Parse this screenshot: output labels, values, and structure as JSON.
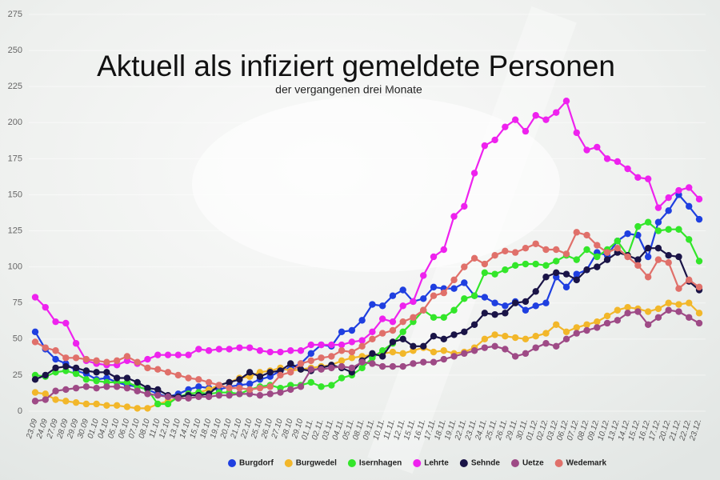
{
  "chart_data": {
    "type": "line",
    "title": "Aktuell als infiziert gemeldete Personen",
    "subtitle": "der vergangenen drei Monate",
    "categories": [
      "23.09",
      "24.09",
      "27.09",
      "28.09",
      "29.09",
      "30.09",
      "01.10",
      "04.10",
      "05.10",
      "06.10",
      "07.10",
      "08.10",
      "11.10",
      "12.10",
      "13.10",
      "14.10",
      "15.10",
      "18.10",
      "19.10",
      "20.10",
      "21.10",
      "22.10",
      "25.10",
      "26.10",
      "27.10",
      "28.10",
      "29.10",
      "01.11.",
      "02.11.",
      "03.11.",
      "04.11.",
      "05.11.",
      "08.11.",
      "09.11.",
      "10.11.",
      "11.11.",
      "12.11.",
      "15.11.",
      "16.11.",
      "17.11.",
      "18.11.",
      "19.11.",
      "22.11.",
      "23.11.",
      "24.11.",
      "25.11.",
      "26.11.",
      "29.11.",
      "30.11.",
      "01.12.",
      "02.12.",
      "03.12.",
      "06.12.",
      "07.12.",
      "08.12.",
      "09.12.",
      "10.12.",
      "13.12.",
      "14.12.",
      "15.12.",
      "16.12.",
      "17.12.",
      "20.12.",
      "21.12.",
      "22.12.",
      "23.12."
    ],
    "series": [
      {
        "name": "Burgdorf",
        "color": "#1f3fe0",
        "values": [
          55,
          43,
          36,
          33,
          28,
          26,
          22,
          23,
          20,
          18,
          17,
          15,
          12,
          10,
          12,
          15,
          17,
          16,
          15,
          17,
          18,
          19,
          22,
          24,
          28,
          30,
          33,
          40,
          46,
          45,
          55,
          56,
          63,
          74,
          73,
          80,
          84,
          76,
          78,
          86,
          85,
          85,
          89,
          80,
          79,
          75,
          73,
          76,
          70,
          73,
          75,
          93,
          86,
          95,
          98,
          110,
          108,
          118,
          123,
          122,
          107,
          131,
          139,
          150,
          142,
          133
        ]
      },
      {
        "name": "Burgwedel",
        "color": "#f2b72a",
        "values": [
          13,
          12,
          8,
          7,
          6,
          5,
          5,
          4,
          4,
          3,
          2,
          2,
          5,
          7,
          9,
          12,
          13,
          15,
          18,
          20,
          23,
          24,
          27,
          28,
          30,
          28,
          29,
          30,
          31,
          32,
          35,
          37,
          38,
          39,
          40,
          41,
          40,
          42,
          44,
          41,
          42,
          40,
          41,
          44,
          50,
          53,
          52,
          51,
          50,
          52,
          54,
          60,
          55,
          58,
          60,
          62,
          66,
          70,
          72,
          71,
          69,
          71,
          75,
          74,
          75,
          68
        ]
      },
      {
        "name": "Isernhagen",
        "color": "#33e62a",
        "values": [
          25,
          24,
          27,
          28,
          26,
          22,
          21,
          20,
          20,
          20,
          17,
          15,
          5,
          5,
          10,
          12,
          13,
          12,
          13,
          13,
          12,
          15,
          17,
          18,
          16,
          18,
          18,
          20,
          17,
          18,
          23,
          25,
          30,
          37,
          42,
          47,
          55,
          62,
          70,
          65,
          65,
          70,
          78,
          80,
          96,
          95,
          98,
          101,
          102,
          102,
          101,
          104,
          108,
          105,
          112,
          107,
          112,
          118,
          108,
          128,
          131,
          125,
          126,
          126,
          119,
          104
        ]
      },
      {
        "name": "Lehrte",
        "color": "#ee22ee",
        "values": [
          79,
          72,
          62,
          61,
          47,
          35,
          33,
          32,
          32,
          35,
          33,
          36,
          39,
          39,
          39,
          39,
          43,
          42,
          43,
          43,
          44,
          44,
          42,
          41,
          41,
          42,
          42,
          46,
          46,
          46,
          46,
          48,
          49,
          55,
          64,
          62,
          73,
          76,
          94,
          107,
          112,
          135,
          142,
          165,
          184,
          188,
          197,
          202,
          194,
          205,
          202,
          207,
          215,
          193,
          181,
          183,
          175,
          173,
          168,
          162,
          161,
          141,
          148,
          153,
          155,
          147
        ]
      },
      {
        "name": "Sehnde",
        "color": "#1a1447",
        "values": [
          22,
          25,
          30,
          31,
          30,
          28,
          27,
          27,
          23,
          23,
          20,
          16,
          15,
          11,
          10,
          11,
          11,
          12,
          18,
          20,
          22,
          27,
          24,
          27,
          28,
          33,
          29,
          28,
          30,
          32,
          30,
          27,
          35,
          40,
          38,
          48,
          50,
          45,
          45,
          52,
          50,
          53,
          55,
          60,
          68,
          67,
          68,
          75,
          76,
          83,
          93,
          96,
          95,
          91,
          98,
          100,
          105,
          110,
          108,
          105,
          113,
          113,
          108,
          107,
          90,
          84
        ]
      },
      {
        "name": "Uetze",
        "color": "#9e4a86",
        "values": [
          7,
          8,
          14,
          15,
          16,
          17,
          16,
          17,
          17,
          16,
          14,
          12,
          11,
          10,
          9,
          9,
          10,
          10,
          11,
          11,
          12,
          12,
          11,
          12,
          13,
          15,
          17,
          29,
          29,
          30,
          31,
          30,
          34,
          33,
          31,
          31,
          31,
          33,
          34,
          34,
          36,
          38,
          40,
          42,
          44,
          45,
          43,
          38,
          40,
          44,
          47,
          45,
          50,
          54,
          56,
          58,
          61,
          63,
          68,
          69,
          60,
          65,
          70,
          69,
          65,
          61
        ]
      },
      {
        "name": "Wedemark",
        "color": "#e0706a",
        "values": [
          48,
          44,
          42,
          37,
          37,
          36,
          35,
          34,
          35,
          38,
          34,
          30,
          29,
          27,
          25,
          23,
          22,
          20,
          18,
          16,
          16,
          15,
          16,
          17,
          25,
          27,
          33,
          35,
          37,
          38,
          42,
          41,
          45,
          50,
          54,
          56,
          62,
          65,
          70,
          80,
          82,
          91,
          100,
          106,
          102,
          108,
          111,
          110,
          113,
          116,
          112,
          112,
          109,
          124,
          122,
          115,
          110,
          113,
          107,
          101,
          93,
          105,
          103,
          85,
          91,
          86
        ]
      }
    ],
    "ylim": [
      0,
      275
    ],
    "yticks": [
      0,
      25,
      50,
      75,
      100,
      125,
      150,
      175,
      200,
      225,
      250,
      275
    ],
    "grid": true
  }
}
